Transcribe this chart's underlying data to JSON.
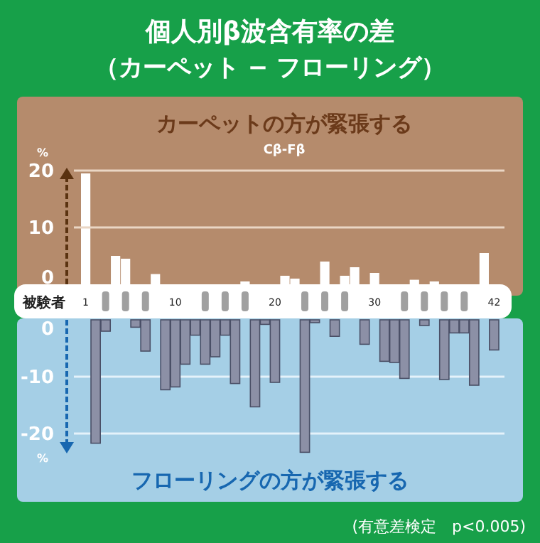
{
  "chart_data": [
    {
      "type": "bar",
      "title": "個人別β波含有率の差",
      "subtitle": "（カーペット − フローリング）",
      "ylabel": "%",
      "xlabel": "被験者",
      "categories": [
        "1",
        null,
        null,
        null,
        null,
        null,
        null,
        null,
        null,
        "10",
        null,
        null,
        null,
        null,
        null,
        null,
        null,
        null,
        null,
        "20",
        null,
        null,
        null,
        null,
        null,
        null,
        null,
        null,
        null,
        "30",
        null,
        null,
        null,
        null,
        null,
        null,
        null,
        null,
        null,
        null,
        null,
        "42"
      ],
      "values": [
        19.5,
        null,
        null,
        5,
        4.5,
        null,
        null,
        1.8,
        null,
        null,
        null,
        null,
        null,
        null,
        null,
        null,
        0.5,
        null,
        null,
        null,
        1.5,
        1,
        null,
        null,
        4,
        null,
        1.5,
        3,
        null,
        2,
        null,
        null,
        null,
        0.8,
        null,
        0.5,
        null,
        null,
        null,
        null,
        5.5,
        null
      ],
      "color": "#ffffff",
      "ylim": [
        0,
        20.5
      ],
      "yticks": [
        0,
        10,
        20
      ],
      "grid": "y",
      "annotations": [
        "カーペットの方が緊張する",
        "Cβ-Fβ"
      ]
    },
    {
      "type": "bar",
      "ylabel": "%",
      "tick_labels": "y",
      "categories": [
        null,
        null,
        null,
        null,
        null,
        null,
        null,
        null,
        null,
        null,
        null,
        null,
        null,
        null,
        null,
        null,
        null,
        null,
        null,
        null,
        null,
        null,
        null,
        null,
        null,
        null,
        null,
        null,
        null,
        null,
        null,
        null,
        null,
        null,
        null,
        null,
        null,
        null,
        null,
        null,
        null,
        null
      ],
      "values": [
        null,
        -21.7,
        -2,
        null,
        null,
        -1.3,
        -5.5,
        null,
        -12.3,
        -11.8,
        -7.8,
        -2.7,
        -7.8,
        -6.5,
        -2.7,
        -11.2,
        null,
        -15.3,
        -0.8,
        -11,
        null,
        null,
        -23.3,
        -0.5,
        null,
        -2.9,
        null,
        null,
        -4.3,
        null,
        -7.3,
        -7.5,
        -10.3,
        null,
        -1,
        null,
        -10.5,
        -2.3,
        -2.3,
        -11.5,
        null,
        -5.3
      ],
      "color": "#8c90a6",
      "ylim": [
        -23.5,
        0
      ],
      "yticks": [
        0,
        -10,
        -20
      ],
      "grid": "y",
      "annotations": [
        "フローリングの方が緊張する",
        "(有意差検定　p<0.005)"
      ]
    }
  ]
}
